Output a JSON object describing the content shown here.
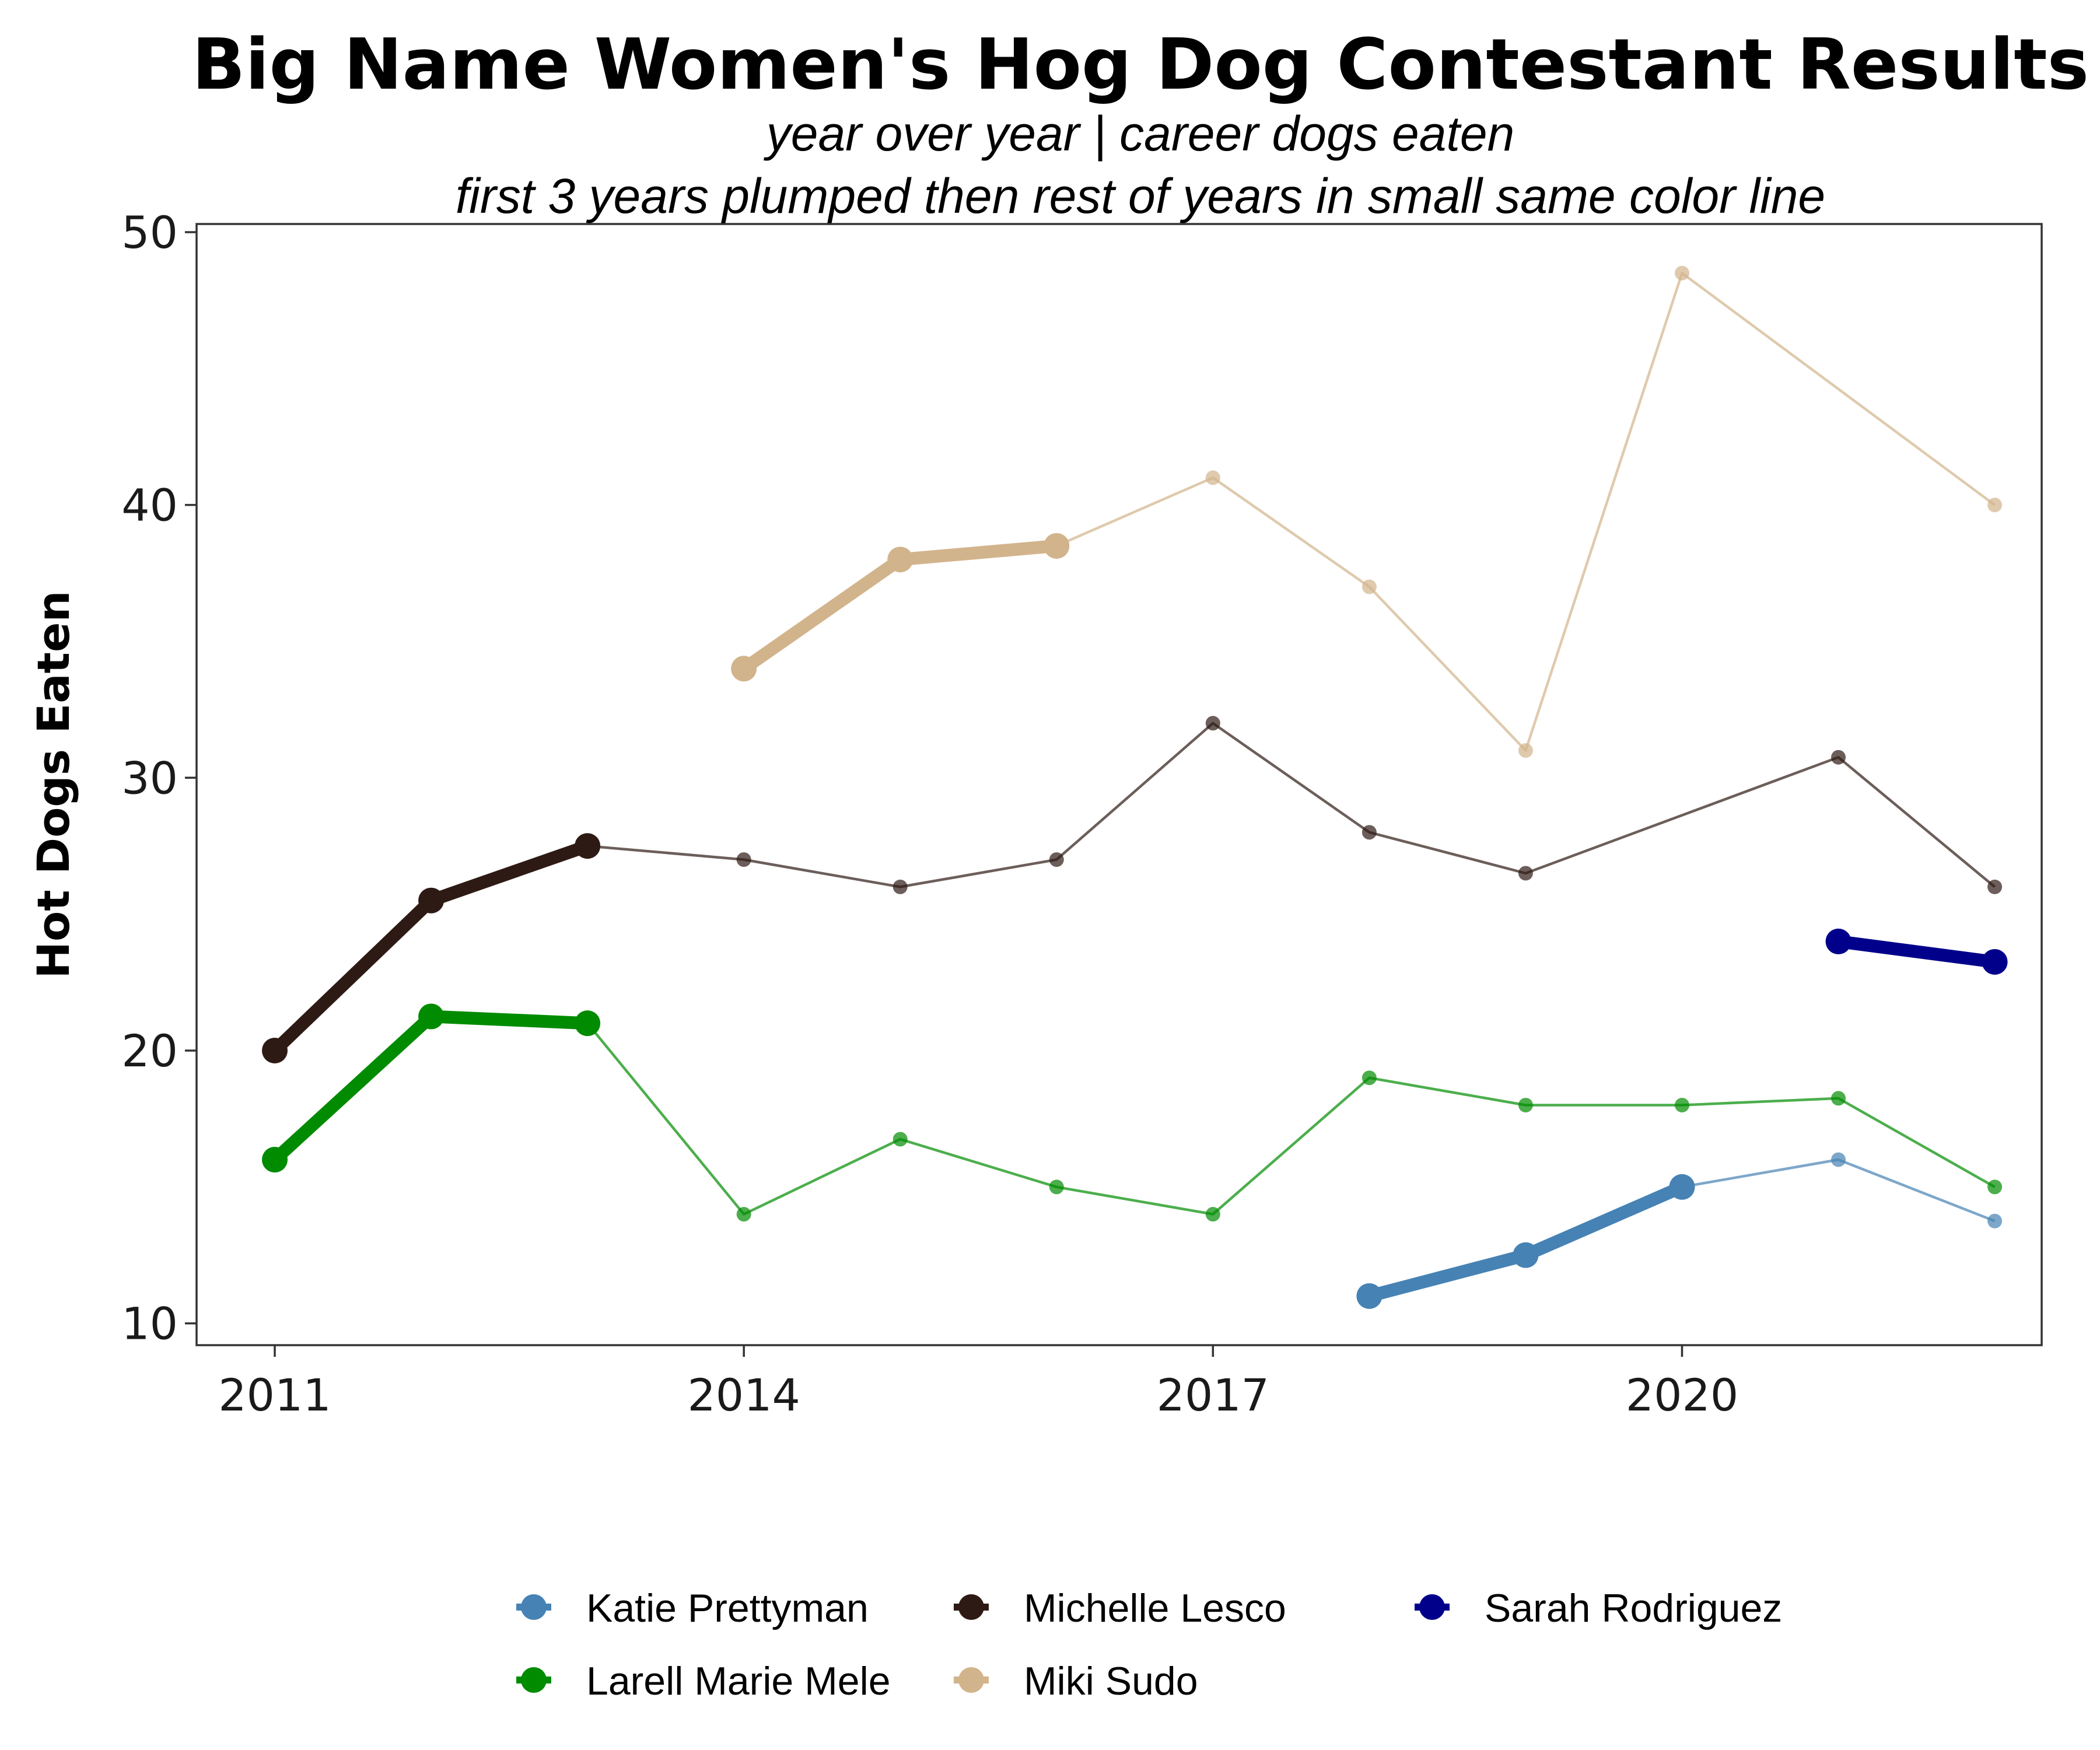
{
  "chart_data": {
    "type": "line",
    "title": "Big Name Women's Hog Dog Contestant Results",
    "subtitle_lines": [
      "year over year | career dogs eaten",
      "first 3 years plumped then rest of years in small same color line"
    ],
    "xlabel": "",
    "ylabel": "Hot Dogs Eaten",
    "xlim": [
      2010.5,
      2022.3
    ],
    "ylim": [
      9.2,
      50.3
    ],
    "x_ticks": [
      2011,
      2014,
      2017,
      2020
    ],
    "y_ticks": [
      10,
      20,
      30,
      40,
      50
    ],
    "grid": false,
    "legend_position": "bottom",
    "series": [
      {
        "name": "Katie Prettyman",
        "color": "#4682B4",
        "points": [
          [
            2018,
            11
          ],
          [
            2019,
            12.5
          ],
          [
            2020,
            15
          ],
          [
            2021,
            16
          ],
          [
            2022,
            13.75
          ]
        ]
      },
      {
        "name": "Miki Sudo",
        "color": "#D2B48C",
        "points": [
          [
            2014,
            34
          ],
          [
            2015,
            38
          ],
          [
            2016,
            38.5
          ],
          [
            2017,
            41
          ],
          [
            2018,
            37
          ],
          [
            2019,
            31
          ],
          [
            2020,
            48.5
          ],
          [
            2022,
            40
          ]
        ]
      },
      {
        "name": "Michelle Lesco",
        "color": "#2E1A14",
        "points": [
          [
            2011,
            20
          ],
          [
            2012,
            25.5
          ],
          [
            2013,
            27.5
          ],
          [
            2014,
            27
          ],
          [
            2015,
            26
          ],
          [
            2016,
            27
          ],
          [
            2017,
            32
          ],
          [
            2018,
            28
          ],
          [
            2019,
            26.5
          ],
          [
            2021,
            30.75
          ],
          [
            2022,
            26
          ]
        ]
      },
      {
        "name": "Larell Marie Mele",
        "color": "#008B00",
        "points": [
          [
            2011,
            16
          ],
          [
            2012,
            21.25
          ],
          [
            2013,
            21
          ],
          [
            2014,
            14
          ],
          [
            2015,
            16.75
          ],
          [
            2016,
            15
          ],
          [
            2017,
            14
          ],
          [
            2018,
            19
          ],
          [
            2019,
            18
          ],
          [
            2020,
            18
          ],
          [
            2021,
            18.25
          ],
          [
            2022,
            15
          ]
        ]
      },
      {
        "name": "Sarah Rodriguez",
        "color": "#00008B",
        "points": [
          [
            2021,
            24
          ],
          [
            2022,
            23.25
          ]
        ]
      }
    ],
    "legend_order": [
      "Katie Prettyman",
      "Larell Marie Mele",
      "Michelle Lesco",
      "Miki Sudo",
      "Sarah Rodriguez"
    ]
  }
}
